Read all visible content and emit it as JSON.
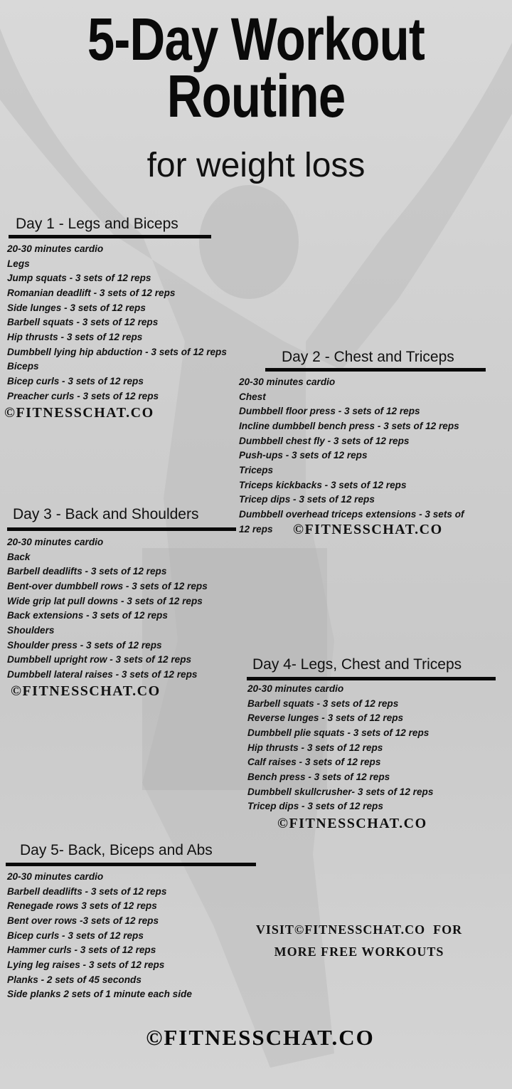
{
  "title": {
    "line1": "5-Day Workout",
    "line2": "Routine",
    "subtitle": "for weight loss"
  },
  "watermark": "©FITNESSCHAT.CO",
  "days": [
    {
      "heading": "Day 1 - Legs and Biceps",
      "items": [
        "20-30 minutes cardio",
        "Legs",
        "Jump squats - 3 sets of 12 reps",
        "Romanian deadlift - 3 sets of 12 reps",
        "Side lunges - 3 sets of 12 reps",
        "Barbell squats - 3 sets of 12 reps",
        "Hip thrusts - 3 sets of 12 reps",
        "Dumbbell lying hip abduction - 3 sets of 12 reps",
        "Biceps",
        "Bicep curls - 3 sets of 12 reps",
        "Preacher curls - 3 sets of 12 reps"
      ]
    },
    {
      "heading": "Day 2 - Chest and Triceps",
      "items": [
        "20-30 minutes cardio",
        "Chest",
        "Dumbbell floor press - 3 sets of 12 reps",
        "Incline dumbbell bench press - 3 sets of 12 reps",
        "Dumbbell chest fly - 3 sets of 12 reps",
        "Push-ups - 3 sets of 12 reps",
        "Triceps",
        "Triceps kickbacks - 3 sets of 12 reps",
        "Tricep dips - 3 sets of 12 reps",
        "Dumbbell overhead triceps extensions - 3 sets of",
        "12 reps"
      ]
    },
    {
      "heading": "Day 3 - Back and Shoulders",
      "items": [
        "20-30 minutes cardio",
        "Back",
        "Barbell deadlifts - 3 sets of 12 reps",
        "Bent-over dumbbell rows - 3 sets of 12 reps",
        "Wide grip lat pull downs - 3 sets of 12 reps",
        "Back extensions - 3 sets of 12 reps",
        "Shoulders",
        "Shoulder press - 3 sets of 12 reps",
        "Dumbbell upright row - 3 sets of 12 reps",
        "Dumbbell lateral raises - 3 sets of 12 reps"
      ]
    },
    {
      "heading": "Day 4- Legs, Chest and Triceps",
      "items": [
        "20-30 minutes cardio",
        "Barbell squats - 3 sets of 12 reps",
        "Reverse lunges - 3 sets of 12 reps",
        "Dumbbell plie squats - 3 sets of 12 reps",
        "Hip thrusts - 3 sets of 12 reps",
        "Calf raises - 3 sets of 12 reps",
        "Bench press - 3 sets of 12 reps",
        "Dumbbell skullcrusher- 3 sets of 12 reps",
        "Tricep dips - 3 sets of 12 reps"
      ]
    },
    {
      "heading": "Day 5- Back, Biceps and Abs",
      "items": [
        "20-30 minutes cardio",
        "Barbell deadlifts - 3 sets of 12 reps",
        "Renegade rows 3 sets of 12 reps",
        "Bent over rows -3 sets of 12 reps",
        "Bicep curls - 3 sets of 12 reps",
        "Hammer curls - 3 sets of 12 reps",
        "Lying leg raises - 3 sets of 12 reps",
        "Planks - 2 sets of 45 seconds",
        "Side planks 2 sets of 1 minute each side"
      ]
    }
  ],
  "visit": {
    "line1": "VISIT©FITNESSCHAT.CO  FOR",
    "line2": "MORE FREE WORKOUTS"
  },
  "footer": "©FITNESSCHAT.CO"
}
